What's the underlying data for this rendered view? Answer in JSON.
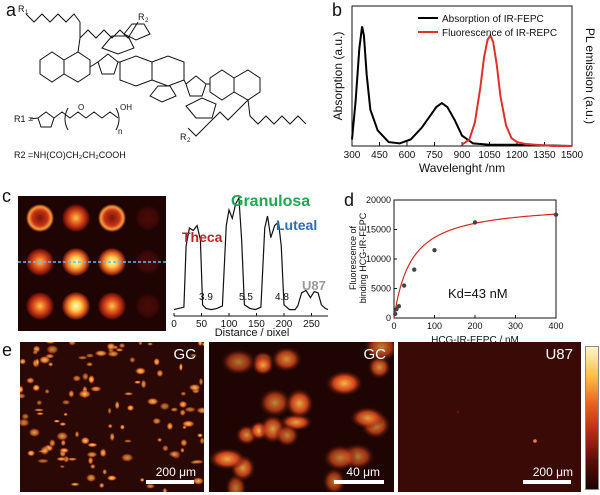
{
  "panels": {
    "a": {
      "letter": "a",
      "labels": {
        "r1_top": "R",
        "r1_top_sub": "1",
        "r2_top": "R",
        "r2_top_sub": "2",
        "r2_bottom": "R",
        "r2_bottom_sub": "2",
        "r1_def": "R1 =",
        "oh": "OH",
        "o": "O",
        "n": "n",
        "r2_def": "R2 =NH(CO)CH₂CH₂COOH"
      }
    },
    "b": {
      "letter": "b",
      "chart_data": {
        "type": "line",
        "xlabel": "Wavelenght /nm",
        "ylabel_left": "Absorption (a.u.)",
        "ylabel_right": "PL emission (a.u.)",
        "xlim": [
          300,
          1500
        ],
        "xticks": [
          "300",
          "450",
          "600",
          "750",
          "900",
          "1050",
          "1200",
          "1350",
          "1500"
        ],
        "legend_position": "top-right",
        "series": [
          {
            "name": "Absorption of IR-FEPC",
            "color": "#000000",
            "x": [
              300,
              320,
              340,
              355,
              365,
              380,
              400,
              440,
              500,
              560,
              620,
              680,
              720,
              760,
              790,
              820,
              860,
              900,
              960,
              1050,
              1200,
              1500
            ],
            "y": [
              0.05,
              0.35,
              0.75,
              0.92,
              0.85,
              0.55,
              0.28,
              0.12,
              0.03,
              0.02,
              0.05,
              0.14,
              0.22,
              0.3,
              0.33,
              0.3,
              0.2,
              0.08,
              0.02,
              0.01,
              0.01,
              0.0
            ]
          },
          {
            "name": "Fluorescence of IR-REPC",
            "color": "#e0302a",
            "x": [
              900,
              940,
              970,
              1000,
              1020,
              1040,
              1055,
              1070,
              1090,
              1110,
              1140,
              1170,
              1200,
              1250,
              1300,
              1350,
              1400,
              1500
            ],
            "y": [
              0.01,
              0.05,
              0.18,
              0.45,
              0.68,
              0.82,
              0.85,
              0.8,
              0.62,
              0.38,
              0.16,
              0.06,
              0.03,
              0.015,
              0.01,
              0.005,
              0.0,
              0.0
            ]
          }
        ]
      }
    },
    "c": {
      "letter": "c",
      "chart_data": {
        "type": "line",
        "xlabel": "Distance / pixel",
        "xlim": [
          0,
          280
        ],
        "xticks": [
          "0",
          "50",
          "100",
          "150",
          "200",
          "250"
        ],
        "annotations": [
          {
            "text": "Theca",
            "color": "#b5252a"
          },
          {
            "text": "Granulosa",
            "color": "#22a651"
          },
          {
            "text": "Luteal",
            "color": "#2b6cb3"
          },
          {
            "text": "U87",
            "color": "#9a9a9a"
          }
        ],
        "peak_values": [
          "3.9",
          "5.5",
          "4.8"
        ],
        "series": [
          {
            "x": [
              0,
              18,
              22,
              28,
              35,
              42,
              48,
              52,
              58,
              68,
              78,
              88,
              95,
              100,
              106,
              112,
              118,
              123,
              128,
              138,
              148,
              158,
              165,
              170,
              176,
              183,
              190,
              195,
              200,
              210,
              220,
              225,
              232,
              240,
              248,
              255,
              262,
              268,
              275,
              280
            ],
            "y": [
              0.02,
              0.04,
              0.55,
              0.7,
              0.68,
              0.72,
              0.6,
              0.06,
              0.03,
              0.02,
              0.03,
              0.05,
              0.72,
              0.85,
              0.78,
              0.9,
              0.95,
              0.6,
              0.06,
              0.03,
              0.02,
              0.04,
              0.7,
              0.8,
              0.62,
              0.72,
              0.75,
              0.55,
              0.06,
              0.02,
              0.02,
              0.05,
              0.16,
              0.18,
              0.12,
              0.17,
              0.16,
              0.06,
              0.03,
              0.02
            ]
          }
        ]
      }
    },
    "d": {
      "letter": "d",
      "chart_data": {
        "type": "scatter",
        "xlabel": "HCG-IR-FEPC / nM",
        "ylabel": "Fluorescence of binding HCG-IR-FEPC",
        "ylabel_line1": "Fluorescence of",
        "ylabel_line2": "binding HCG-IR-FEPC",
        "xlim": [
          0,
          400
        ],
        "ylim": [
          0,
          20000
        ],
        "xticks": [
          "0",
          "100",
          "200",
          "300",
          "400"
        ],
        "yticks": [
          "0",
          "5000",
          "10000",
          "15000",
          "20000"
        ],
        "annotation": "Kd=43 nM",
        "points": {
          "x": [
            3,
            6,
            12,
            25,
            50,
            100,
            200,
            400
          ],
          "y": [
            700,
            1500,
            2000,
            5500,
            8200,
            11500,
            16200,
            17500
          ]
        },
        "fit": {
          "name": "",
          "color": "#d12b23",
          "bmax": 19500,
          "kd": 43
        }
      }
    },
    "e": {
      "letter": "e",
      "tiles": [
        {
          "label": "GC",
          "scalebar": "200 μm"
        },
        {
          "label": "GC",
          "scalebar": "40 μm"
        },
        {
          "label": "U87",
          "scalebar": "200 μm"
        }
      ]
    }
  },
  "colors": {
    "hot_dark": "#2a0804",
    "hot_mid": "#c2301a",
    "hot_bright": "#ffd24a"
  }
}
